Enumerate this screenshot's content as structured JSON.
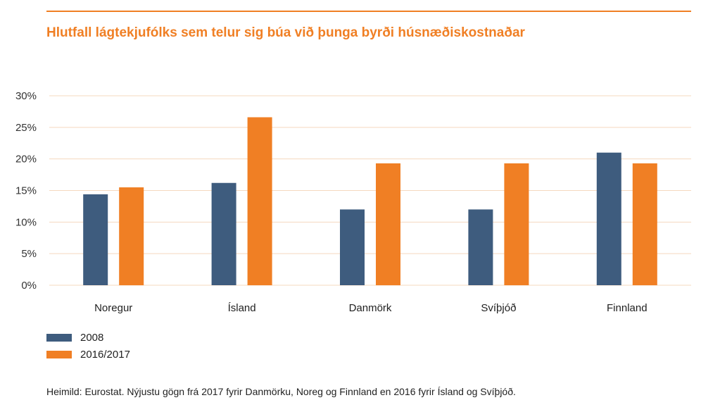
{
  "colors": {
    "accent": "#f07f24",
    "series_2008": "#3e5c7e",
    "series_2016": "#f07f24",
    "grid": "#f5d8bf",
    "axis_text": "#333333"
  },
  "title": "Hlutfall lágtekjufólks sem telur sig búa við þunga byrði húsnæðiskostnaðar",
  "source": "Heimild: Eurostat. Nýjustu gögn frá 2017 fyrir Danmörku, Noreg og Finnland en 2016 fyrir Ísland og Svíþjóð.",
  "chart_data": {
    "type": "bar",
    "title": "Hlutfall lágtekjufólks sem telur sig búa við þunga byrði húsnæðiskostnaðar",
    "xlabel": "",
    "ylabel": "",
    "categories": [
      "Noregur",
      "Ísland",
      "Danmörk",
      "Svíþjóð",
      "Finnland"
    ],
    "series": [
      {
        "name": "2008",
        "values": [
          14.4,
          16.2,
          12.0,
          12.0,
          21.0
        ]
      },
      {
        "name": "2016/2017",
        "values": [
          15.5,
          26.6,
          19.3,
          19.3,
          19.3
        ]
      }
    ],
    "ylim": [
      0,
      30
    ],
    "yticks": [
      0,
      5,
      10,
      15,
      20,
      25,
      30
    ],
    "ytick_labels": [
      "0%",
      "5%",
      "10%",
      "15%",
      "20%",
      "25%",
      "30%"
    ],
    "grid": true,
    "legend": "bottom-left"
  }
}
